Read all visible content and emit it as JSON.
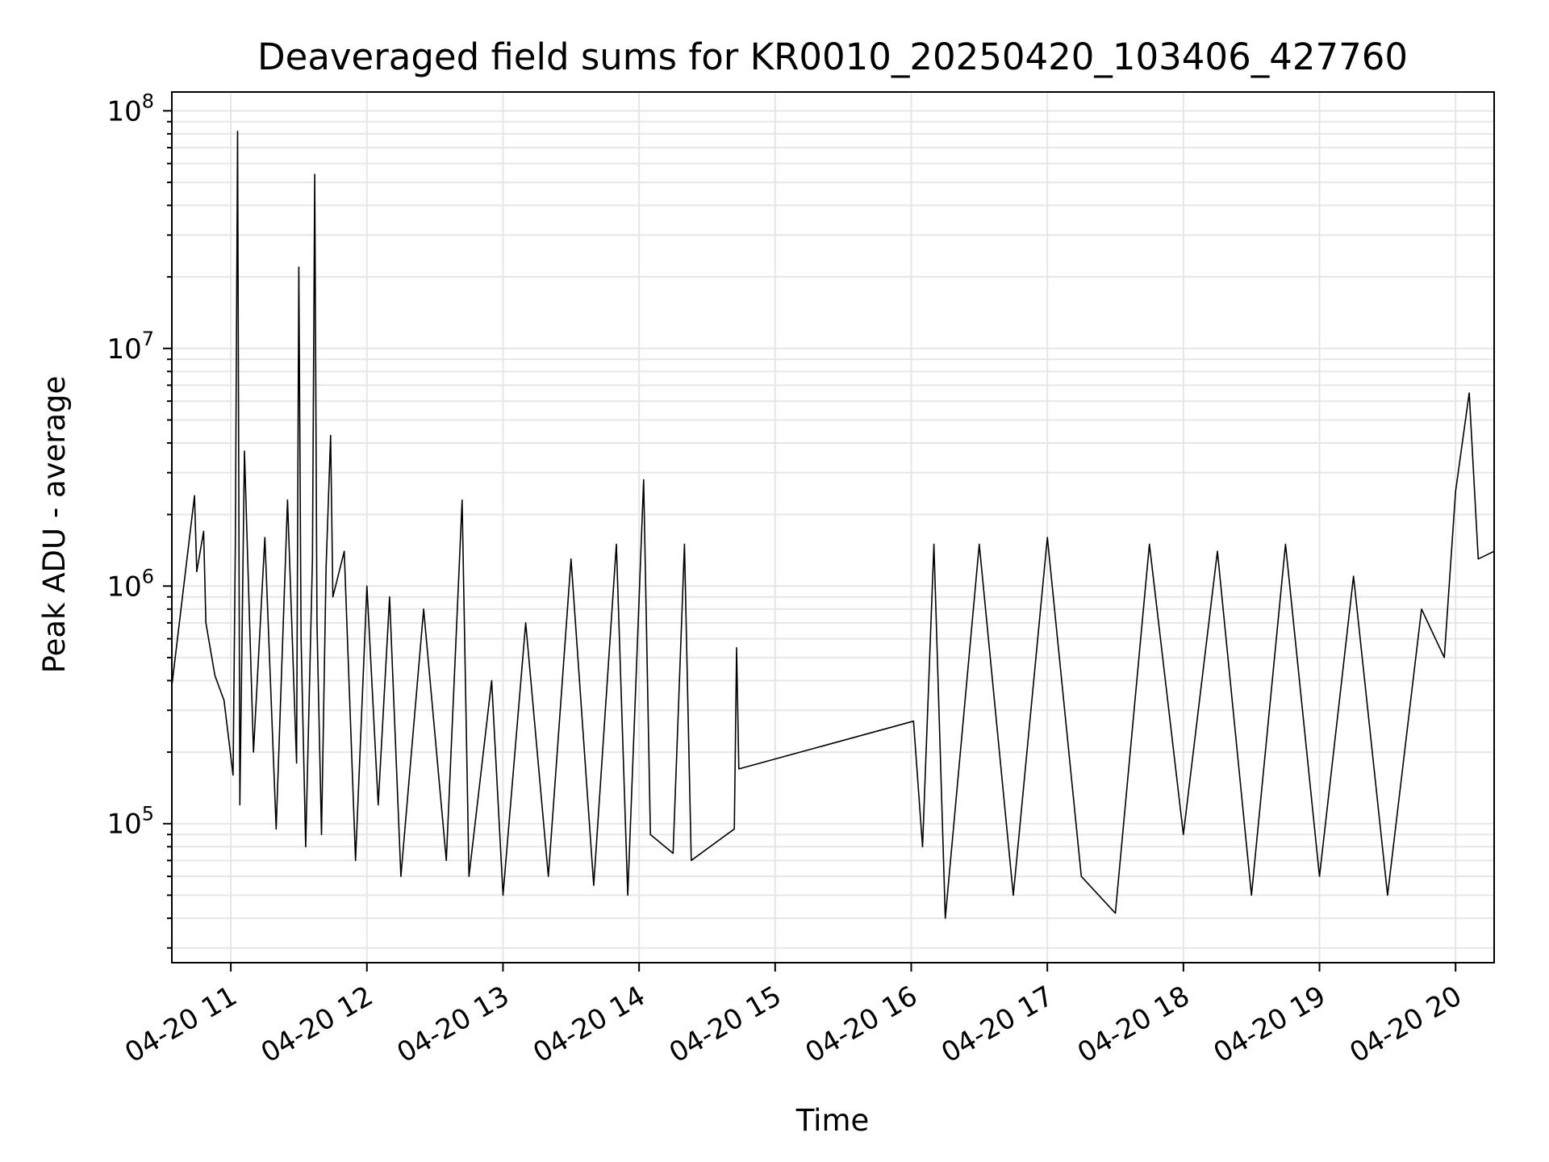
{
  "chart_data": {
    "type": "line",
    "title": "Deaveraged field sums for KR0010_20250420_103406_427760",
    "xlabel": "Time",
    "ylabel": "Peak ADU - average",
    "yscale": "log",
    "ylim": [
      26000,
      120000000
    ],
    "xlim": [
      "2025-04-20 10:34",
      "2025-04-20 20:17"
    ],
    "grid": true,
    "line_color": "#000000",
    "grid_color": "#e6e6e6",
    "x_ticks": [
      {
        "time": "2025-04-20 11:00",
        "label": "04-20 11"
      },
      {
        "time": "2025-04-20 12:00",
        "label": "04-20 12"
      },
      {
        "time": "2025-04-20 13:00",
        "label": "04-20 13"
      },
      {
        "time": "2025-04-20 14:00",
        "label": "04-20 14"
      },
      {
        "time": "2025-04-20 15:00",
        "label": "04-20 15"
      },
      {
        "time": "2025-04-20 16:00",
        "label": "04-20 16"
      },
      {
        "time": "2025-04-20 17:00",
        "label": "04-20 17"
      },
      {
        "time": "2025-04-20 18:00",
        "label": "04-20 18"
      },
      {
        "time": "2025-04-20 19:00",
        "label": "04-20 19"
      },
      {
        "time": "2025-04-20 20:00",
        "label": "04-20 20"
      }
    ],
    "y_ticks": [
      {
        "value": 100000,
        "base": "10",
        "exp": "5"
      },
      {
        "value": 1000000,
        "base": "10",
        "exp": "6"
      },
      {
        "value": 10000000,
        "base": "10",
        "exp": "7"
      },
      {
        "value": 100000000,
        "base": "10",
        "exp": "8"
      }
    ],
    "series": [
      {
        "points": [
          [
            "2025-04-20 10:34",
            380000
          ],
          [
            "2025-04-20 10:44",
            2400000
          ],
          [
            "2025-04-20 10:45",
            1150000
          ],
          [
            "2025-04-20 10:48",
            1700000
          ],
          [
            "2025-04-20 10:49",
            700000
          ],
          [
            "2025-04-20 10:53",
            420000
          ],
          [
            "2025-04-20 10:57",
            330000
          ],
          [
            "2025-04-20 11:01",
            160000
          ],
          [
            "2025-04-20 11:02",
            1500000
          ],
          [
            "2025-04-20 11:03",
            82000000
          ],
          [
            "2025-04-20 11:04",
            120000
          ],
          [
            "2025-04-20 11:06",
            3700000
          ],
          [
            "2025-04-20 11:10",
            200000
          ],
          [
            "2025-04-20 11:15",
            1600000
          ],
          [
            "2025-04-20 11:20",
            95000
          ],
          [
            "2025-04-20 11:25",
            2300000
          ],
          [
            "2025-04-20 11:29",
            180000
          ],
          [
            "2025-04-20 11:30",
            22000000
          ],
          [
            "2025-04-20 11:31",
            600000
          ],
          [
            "2025-04-20 11:33",
            80000
          ],
          [
            "2025-04-20 11:36",
            1300000
          ],
          [
            "2025-04-20 11:37",
            54000000
          ],
          [
            "2025-04-20 11:38",
            700000
          ],
          [
            "2025-04-20 11:40",
            90000
          ],
          [
            "2025-04-20 11:42",
            1200000
          ],
          [
            "2025-04-20 11:44",
            4300000
          ],
          [
            "2025-04-20 11:45",
            900000
          ],
          [
            "2025-04-20 11:50",
            1400000
          ],
          [
            "2025-04-20 11:55",
            70000
          ],
          [
            "2025-04-20 12:00",
            1000000
          ],
          [
            "2025-04-20 12:05",
            120000
          ],
          [
            "2025-04-20 12:10",
            900000
          ],
          [
            "2025-04-20 12:15",
            60000
          ],
          [
            "2025-04-20 12:25",
            800000
          ],
          [
            "2025-04-20 12:35",
            70000
          ],
          [
            "2025-04-20 12:42",
            2300000
          ],
          [
            "2025-04-20 12:45",
            60000
          ],
          [
            "2025-04-20 12:55",
            400000
          ],
          [
            "2025-04-20 13:00",
            50000
          ],
          [
            "2025-04-20 13:10",
            700000
          ],
          [
            "2025-04-20 13:20",
            60000
          ],
          [
            "2025-04-20 13:30",
            1300000
          ],
          [
            "2025-04-20 13:40",
            55000
          ],
          [
            "2025-04-20 13:50",
            1500000
          ],
          [
            "2025-04-20 13:55",
            50000
          ],
          [
            "2025-04-20 14:02",
            2800000
          ],
          [
            "2025-04-20 14:05",
            90000
          ],
          [
            "2025-04-20 14:15",
            75000
          ],
          [
            "2025-04-20 14:20",
            1500000
          ],
          [
            "2025-04-20 14:23",
            70000
          ],
          [
            "2025-04-20 14:42",
            95000
          ],
          [
            "2025-04-20 14:43",
            550000
          ],
          [
            "2025-04-20 14:44",
            170000
          ],
          [
            "2025-04-20 16:01",
            270000
          ],
          [
            "2025-04-20 16:05",
            80000
          ],
          [
            "2025-04-20 16:10",
            1500000
          ],
          [
            "2025-04-20 16:15",
            40000
          ],
          [
            "2025-04-20 16:30",
            1500000
          ],
          [
            "2025-04-20 16:45",
            50000
          ],
          [
            "2025-04-20 17:00",
            1600000
          ],
          [
            "2025-04-20 17:15",
            60000
          ],
          [
            "2025-04-20 17:30",
            42000
          ],
          [
            "2025-04-20 17:45",
            1500000
          ],
          [
            "2025-04-20 18:00",
            90000
          ],
          [
            "2025-04-20 18:15",
            1400000
          ],
          [
            "2025-04-20 18:30",
            50000
          ],
          [
            "2025-04-20 18:45",
            1500000
          ],
          [
            "2025-04-20 19:00",
            60000
          ],
          [
            "2025-04-20 19:15",
            1100000
          ],
          [
            "2025-04-20 19:30",
            50000
          ],
          [
            "2025-04-20 19:45",
            800000
          ],
          [
            "2025-04-20 19:55",
            500000
          ],
          [
            "2025-04-20 20:00",
            2500000
          ],
          [
            "2025-04-20 20:06",
            6500000
          ],
          [
            "2025-04-20 20:10",
            1300000
          ],
          [
            "2025-04-20 20:17",
            1400000
          ]
        ]
      }
    ]
  }
}
